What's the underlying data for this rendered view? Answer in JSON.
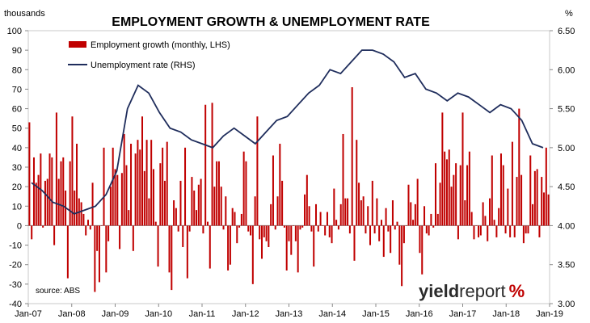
{
  "chart_data": {
    "type": "bar+line",
    "title": "EMPLOYMENT GROWTH & UNEMPLOYMENT RATE",
    "left_axis_unit": "thousands",
    "right_axis_unit": "%",
    "left_ylim": [
      -40,
      100
    ],
    "right_ylim": [
      3.0,
      6.5
    ],
    "left_ticks": [
      "100",
      "90",
      "80",
      "70",
      "60",
      "50",
      "40",
      "30",
      "20",
      "10",
      "0",
      "-10",
      "-20",
      "-30",
      "-40"
    ],
    "right_ticks": [
      "6.50",
      "6.00",
      "5.50",
      "5.00",
      "4.50",
      "4.00",
      "3.50",
      "3.00"
    ],
    "x_tick_labels": [
      "Jan-07",
      "Jan-08",
      "Jan-09",
      "Jan-10",
      "Jan-11",
      "Jan-12",
      "Jan-13",
      "Jan-14",
      "Jan-15",
      "Jan-16",
      "Jan-17",
      "Jan-18",
      "Jan-19"
    ],
    "grid": false,
    "colors": {
      "bars": "#c00000",
      "line": "#1f2d5c"
    },
    "series": [
      {
        "name": "Employment growth (monthly, LHS)",
        "type": "bar",
        "values": [
          53,
          -7,
          35,
          22,
          26,
          37,
          -1,
          23,
          24,
          37,
          35,
          -10,
          58,
          24,
          33,
          35,
          18,
          -27,
          33,
          56,
          18,
          42,
          14,
          12,
          6,
          -5,
          3,
          -2,
          22,
          -34,
          -13,
          -29,
          0,
          40,
          -24,
          -8,
          20,
          40,
          29,
          26,
          -12,
          27,
          47,
          31,
          8,
          42,
          -13,
          37,
          44,
          39,
          56,
          28,
          44,
          14,
          44,
          29,
          2,
          -21,
          32,
          40,
          23,
          43,
          -24,
          -33,
          13,
          9,
          -3,
          23,
          -11,
          40,
          -27,
          -3,
          25,
          18,
          8,
          21,
          24,
          -4,
          62,
          2,
          -22,
          63,
          20,
          33,
          33,
          20,
          -2,
          15,
          -23,
          -20,
          9,
          7,
          -9,
          -1,
          6,
          38,
          33,
          -3,
          -5,
          -30,
          15,
          56,
          -7,
          -17,
          -6,
          -8,
          -11,
          11,
          36,
          -2,
          15,
          42,
          23,
          -1,
          -23,
          -8,
          -15,
          0,
          -8,
          -24,
          -2,
          -1,
          16,
          26,
          10,
          -3,
          -21,
          11,
          -3,
          7,
          0,
          -5,
          7,
          -6,
          -9,
          19,
          3,
          -2,
          11,
          47,
          14,
          14,
          -4,
          71,
          -18,
          44,
          22,
          13,
          15,
          -4,
          10,
          -10,
          23,
          -4,
          14,
          -8,
          3,
          -16,
          9,
          -3,
          -14,
          13,
          -2,
          2,
          -20,
          -31,
          -9,
          0,
          21,
          12,
          3,
          11,
          24,
          -14,
          -25,
          10,
          -4,
          -5,
          6,
          -1,
          32,
          6,
          22,
          58,
          38,
          34,
          39,
          20,
          26,
          32,
          -7,
          31,
          58,
          13,
          31,
          38,
          7,
          -7,
          0,
          -6,
          -5,
          12,
          5,
          -8,
          14,
          36,
          3,
          -6,
          9,
          37,
          31,
          -4,
          19,
          -6,
          43,
          -6,
          25,
          60,
          26,
          -9,
          -4,
          -4,
          36,
          11,
          28,
          29,
          -6,
          25,
          17,
          40,
          16
        ],
        "values_truncated": false
      },
      {
        "name": "Unemployment rate (RHS)",
        "type": "line",
        "x": [
          "Jan-07",
          "Apr-07",
          "Jul-07",
          "Oct-07",
          "Jan-08",
          "Apr-08",
          "Jul-08",
          "Oct-08",
          "Jan-09",
          "Apr-09",
          "Jul-09",
          "Oct-09",
          "Jan-10",
          "Apr-10",
          "Jul-10",
          "Oct-10",
          "Jan-11",
          "Apr-11",
          "Jul-11",
          "Oct-11",
          "Jan-12",
          "Apr-12",
          "Jul-12",
          "Oct-12",
          "Jan-13",
          "Apr-13",
          "Jul-13",
          "Oct-13",
          "Jan-14",
          "Apr-14",
          "Jul-14",
          "Oct-14",
          "Jan-15",
          "Apr-15",
          "Jul-15",
          "Oct-15",
          "Jan-16",
          "Apr-16",
          "Jul-16",
          "Oct-16",
          "Jan-17",
          "Apr-17",
          "Jul-17",
          "Oct-17",
          "Jan-18",
          "Apr-18",
          "Jul-18",
          "Oct-18",
          "Jan-19"
        ],
        "values": [
          4.55,
          4.45,
          4.3,
          4.25,
          4.15,
          4.2,
          4.25,
          4.4,
          4.7,
          5.5,
          5.8,
          5.7,
          5.45,
          5.25,
          5.2,
          5.1,
          5.05,
          5.0,
          5.15,
          5.25,
          5.15,
          5.05,
          5.2,
          5.35,
          5.4,
          5.55,
          5.7,
          5.8,
          6.0,
          5.95,
          6.1,
          6.25,
          6.25,
          6.2,
          6.1,
          5.9,
          5.95,
          5.75,
          5.7,
          5.6,
          5.7,
          5.65,
          5.55,
          5.45,
          5.55,
          5.5,
          5.35,
          5.05,
          5.0
        ]
      }
    ],
    "source": "source: ABS",
    "logo": "yieldreport %"
  }
}
